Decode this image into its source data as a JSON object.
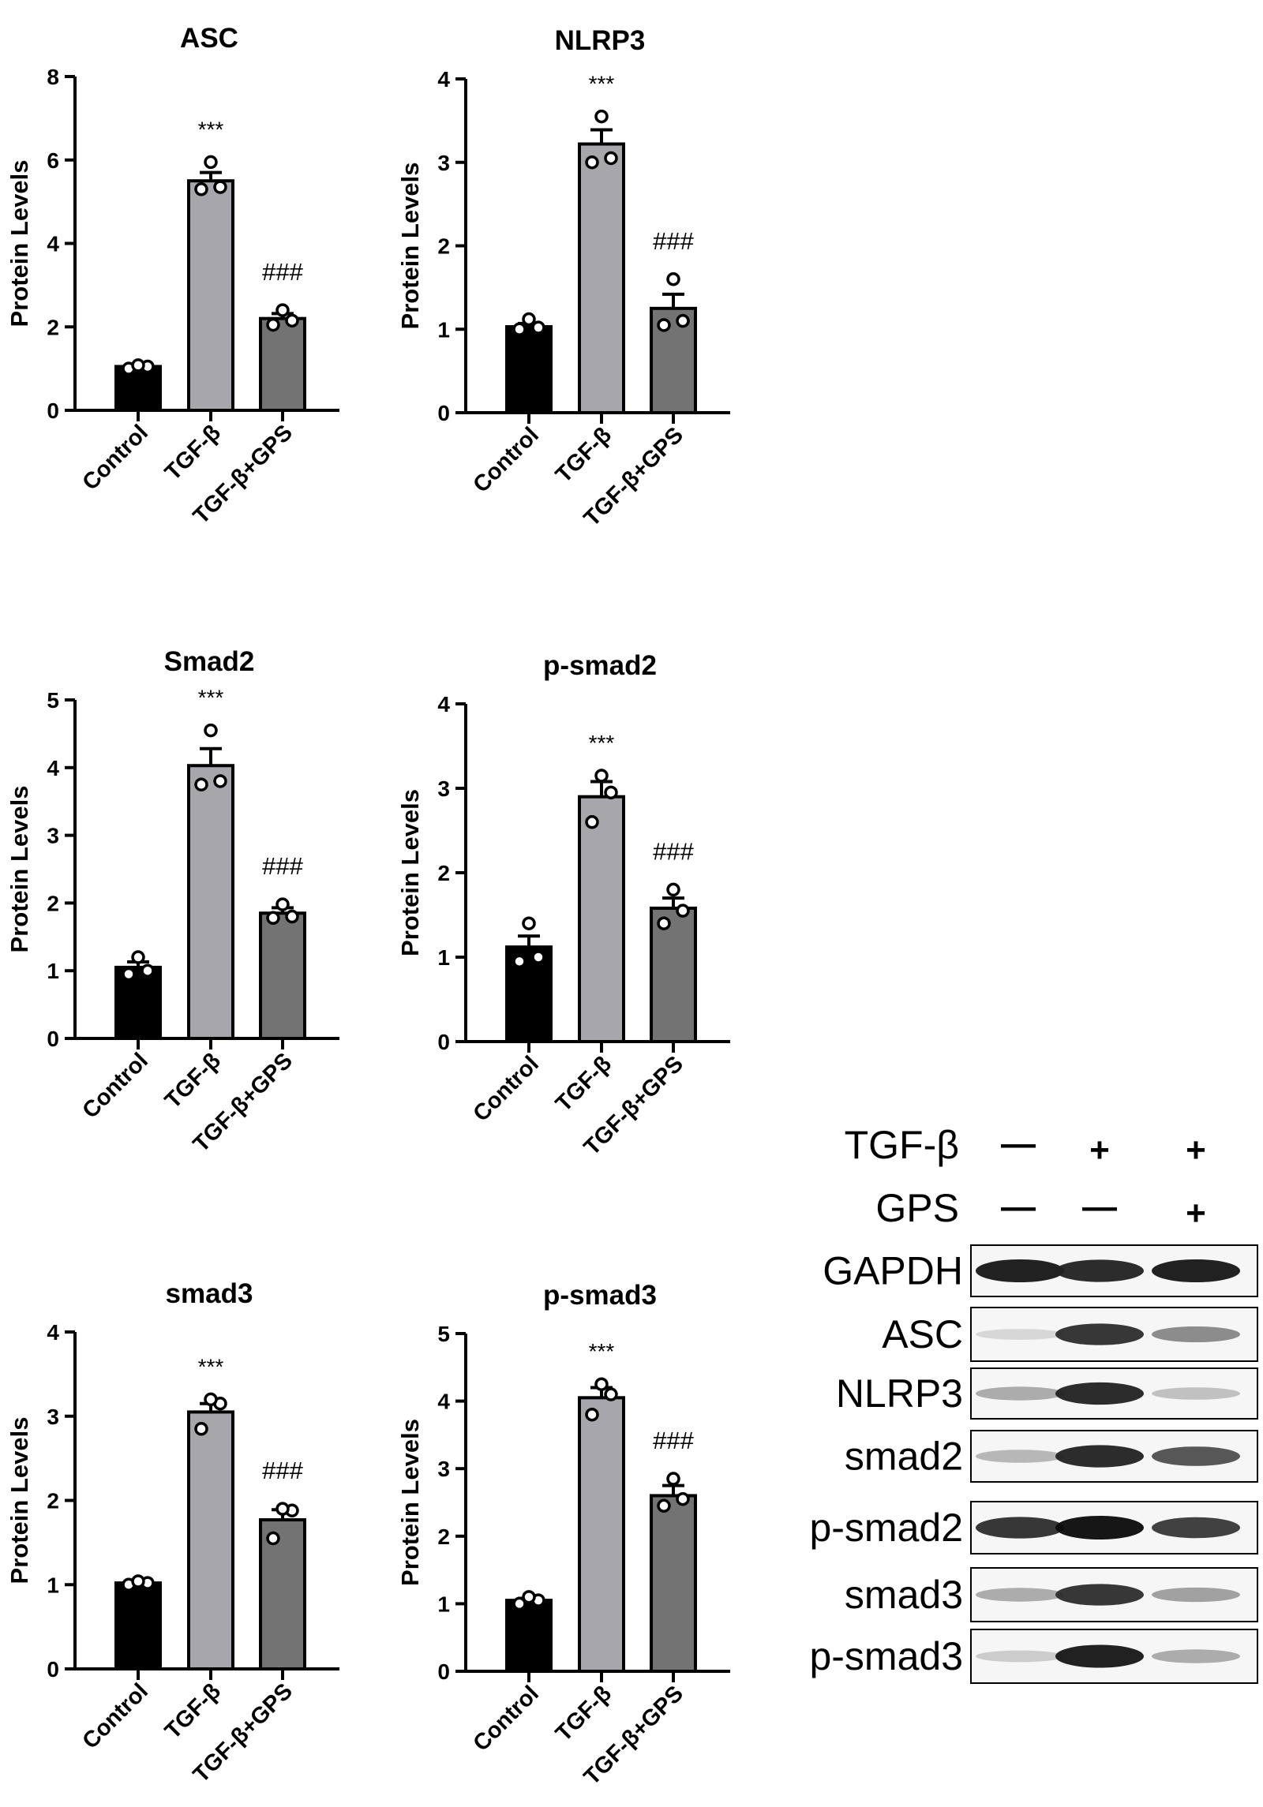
{
  "chart_data": [
    {
      "type": "bar",
      "title": "ASC",
      "ylabel": "Protein Levels",
      "ylim": [
        0,
        8
      ],
      "yticks": [
        0,
        2,
        4,
        6,
        8
      ],
      "categories": [
        "Control",
        "TGF-β",
        "TGF-β+GPS"
      ],
      "values": [
        1.05,
        5.5,
        2.2
      ],
      "errors": [
        0.03,
        0.2,
        0.12
      ],
      "points": [
        [
          1.0,
          1.05,
          1.08
        ],
        [
          5.3,
          5.35,
          5.95
        ],
        [
          2.05,
          2.15,
          2.4
        ]
      ],
      "annotations": [
        "",
        "***",
        "###"
      ],
      "colors": [
        "#000000",
        "#a6a6ab",
        "#737373"
      ]
    },
    {
      "type": "bar",
      "title": "NLRP3",
      "ylabel": "Protein Levels",
      "ylim": [
        0,
        4
      ],
      "yticks": [
        0,
        1,
        2,
        3,
        4
      ],
      "categories": [
        "Control",
        "TGF-β",
        "TGF-β+GPS"
      ],
      "values": [
        1.03,
        3.22,
        1.25
      ],
      "errors": [
        0.04,
        0.17,
        0.17
      ],
      "points": [
        [
          1.0,
          1.02,
          1.12
        ],
        [
          3.0,
          3.05,
          3.55
        ],
        [
          1.05,
          1.1,
          1.6
        ]
      ],
      "annotations": [
        "",
        "***",
        "###"
      ],
      "colors": [
        "#000000",
        "#a6a6ab",
        "#737373"
      ]
    },
    {
      "type": "bar",
      "title": "Smad2",
      "ylabel": "Protein Levels",
      "ylim": [
        0,
        5
      ],
      "yticks": [
        0,
        1,
        2,
        3,
        4,
        5
      ],
      "categories": [
        "Control",
        "TGF-β",
        "TGF-β+GPS"
      ],
      "values": [
        1.05,
        4.03,
        1.85
      ],
      "errors": [
        0.08,
        0.25,
        0.08
      ],
      "points": [
        [
          0.95,
          1.0,
          1.2
        ],
        [
          3.75,
          3.8,
          4.55
        ],
        [
          1.78,
          1.8,
          1.98
        ]
      ],
      "annotations": [
        "",
        "***",
        "###"
      ],
      "colors": [
        "#000000",
        "#a6a6ab",
        "#737373"
      ]
    },
    {
      "type": "bar",
      "title": "p-smad2",
      "ylabel": "Protein Levels",
      "ylim": [
        0,
        4
      ],
      "yticks": [
        0,
        1,
        2,
        3,
        4
      ],
      "categories": [
        "Control",
        "TGF-β",
        "TGF-β+GPS"
      ],
      "values": [
        1.12,
        2.9,
        1.58
      ],
      "errors": [
        0.13,
        0.18,
        0.12
      ],
      "points": [
        [
          0.95,
          1.0,
          1.4
        ],
        [
          2.6,
          2.95,
          3.15
        ],
        [
          1.4,
          1.55,
          1.8
        ]
      ],
      "annotations": [
        "",
        "***",
        "###"
      ],
      "colors": [
        "#000000",
        "#a6a6ab",
        "#737373"
      ]
    },
    {
      "type": "bar",
      "title": "smad3",
      "ylabel": "Protein Levels",
      "ylim": [
        0,
        4
      ],
      "yticks": [
        0,
        1,
        2,
        3,
        4
      ],
      "categories": [
        "Control",
        "TGF-β",
        "TGF-β+GPS"
      ],
      "values": [
        1.02,
        3.05,
        1.77
      ],
      "errors": [
        0.02,
        0.1,
        0.12
      ],
      "points": [
        [
          1.0,
          1.02,
          1.04
        ],
        [
          2.85,
          3.15,
          3.2
        ],
        [
          1.55,
          1.88,
          1.9
        ]
      ],
      "annotations": [
        "",
        "***",
        "###"
      ],
      "colors": [
        "#000000",
        "#a6a6ab",
        "#737373"
      ]
    },
    {
      "type": "bar",
      "title": "p-smad3",
      "ylabel": "Protein Levels",
      "ylim": [
        0,
        5
      ],
      "yticks": [
        0,
        1,
        2,
        3,
        4,
        5
      ],
      "categories": [
        "Control",
        "TGF-β",
        "TGF-β+GPS"
      ],
      "values": [
        1.05,
        4.05,
        2.6
      ],
      "errors": [
        0.03,
        0.15,
        0.15
      ],
      "points": [
        [
          1.0,
          1.05,
          1.1
        ],
        [
          3.8,
          4.1,
          4.25
        ],
        [
          2.45,
          2.55,
          2.85
        ]
      ],
      "annotations": [
        "",
        "***",
        "###"
      ],
      "colors": [
        "#000000",
        "#a6a6ab",
        "#737373"
      ]
    }
  ],
  "blot": {
    "conditions": [
      {
        "label": "TGF-β",
        "marks": [
          "—",
          "+",
          "+"
        ]
      },
      {
        "label": "GPS",
        "marks": [
          "—",
          "—",
          "+"
        ]
      }
    ],
    "lanes": [
      {
        "label": "GAPDH",
        "intensity": [
          0.95,
          0.9,
          0.95
        ]
      },
      {
        "label": "ASC",
        "intensity": [
          0.1,
          0.85,
          0.45
        ]
      },
      {
        "label": "NLRP3",
        "intensity": [
          0.3,
          0.9,
          0.2
        ]
      },
      {
        "label": "smad2",
        "intensity": [
          0.25,
          0.9,
          0.7
        ]
      },
      {
        "label": "p-smad2",
        "intensity": [
          0.85,
          1.0,
          0.8
        ]
      },
      {
        "label": "smad3",
        "intensity": [
          0.3,
          0.85,
          0.35
        ]
      },
      {
        "label": "p-smad3",
        "intensity": [
          0.15,
          0.95,
          0.3
        ]
      }
    ]
  }
}
